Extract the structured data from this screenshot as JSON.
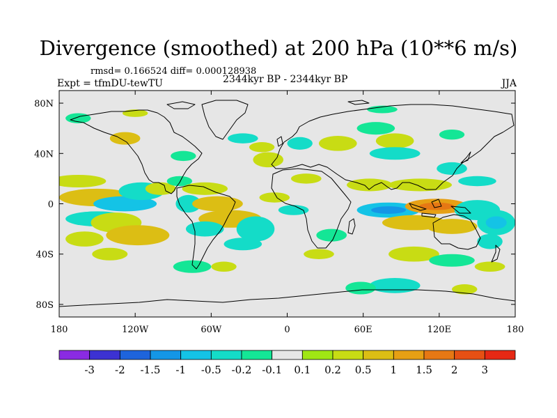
{
  "chart_data": {
    "type": "heatmap",
    "title": "Divergence (smoothed) at 200 hPa (10**6 m/s)",
    "stats": "rmsd= 0.166524 diff= 0.000128938",
    "experiment": "Expt = tfmDU-tewTU",
    "period": "2344kyr BP - 2344kyr BP",
    "season": "JJA",
    "xlim": [
      -180,
      180
    ],
    "ylim": [
      -90,
      90
    ],
    "x_ticks": [
      {
        "value": -180,
        "label": "180"
      },
      {
        "value": -120,
        "label": "120W"
      },
      {
        "value": -60,
        "label": "60W"
      },
      {
        "value": 0,
        "label": "0"
      },
      {
        "value": 60,
        "label": "60E"
      },
      {
        "value": 120,
        "label": "120E"
      },
      {
        "value": 180,
        "label": "180"
      }
    ],
    "y_ticks": [
      {
        "value": 80,
        "label": "80N"
      },
      {
        "value": 40,
        "label": "40N"
      },
      {
        "value": 0,
        "label": "0"
      },
      {
        "value": -40,
        "label": "40S"
      },
      {
        "value": -80,
        "label": "80S"
      }
    ],
    "colorbar": {
      "colors": [
        "#8a2be2",
        "#3c32d2",
        "#1e64dc",
        "#1496e6",
        "#14c3e6",
        "#14dcc8",
        "#14e696",
        "#e6e6e6",
        "#a0e614",
        "#c8dc14",
        "#dcbe14",
        "#e6a014",
        "#e67814",
        "#e65014",
        "#e62814"
      ],
      "labels": [
        "-3",
        "-2",
        "-1.5",
        "-1",
        "-0.5",
        "-0.2",
        "-0.1",
        "0.1",
        "0.2",
        "0.5",
        "1",
        "1.5",
        "2",
        "3"
      ]
    },
    "anomalies": [
      {
        "lon": -165,
        "lat": 18,
        "rx": 22,
        "ry": 5,
        "value": 0.3
      },
      {
        "lon": -150,
        "lat": 5,
        "rx": 30,
        "ry": 7,
        "value": 0.6
      },
      {
        "lon": -128,
        "lat": 0,
        "rx": 25,
        "ry": 6,
        "value": -0.6
      },
      {
        "lon": -115,
        "lat": 10,
        "rx": 18,
        "ry": 7,
        "value": -0.3
      },
      {
        "lon": -150,
        "lat": -12,
        "rx": 25,
        "ry": 6,
        "value": -0.4
      },
      {
        "lon": -135,
        "lat": -15,
        "rx": 20,
        "ry": 8,
        "value": 0.4
      },
      {
        "lon": -118,
        "lat": -25,
        "rx": 25,
        "ry": 8,
        "value": 0.5
      },
      {
        "lon": -160,
        "lat": -28,
        "rx": 15,
        "ry": 6,
        "value": 0.3
      },
      {
        "lon": -140,
        "lat": -40,
        "rx": 14,
        "ry": 5,
        "value": 0.4
      },
      {
        "lon": -128,
        "lat": 52,
        "rx": 12,
        "ry": 5,
        "value": 0.5
      },
      {
        "lon": -82,
        "lat": 38,
        "rx": 10,
        "ry": 4,
        "value": -0.2
      },
      {
        "lon": -100,
        "lat": 12,
        "rx": 12,
        "ry": 5,
        "value": 0.3
      },
      {
        "lon": -85,
        "lat": 18,
        "rx": 10,
        "ry": 4,
        "value": -0.2
      },
      {
        "lon": -65,
        "lat": 12,
        "rx": 18,
        "ry": 5,
        "value": 0.4
      },
      {
        "lon": -78,
        "lat": 0,
        "rx": 10,
        "ry": 7,
        "value": -0.3
      },
      {
        "lon": -55,
        "lat": 0,
        "rx": 20,
        "ry": 6,
        "value": 0.6
      },
      {
        "lon": -45,
        "lat": -12,
        "rx": 25,
        "ry": 7,
        "value": 0.5
      },
      {
        "lon": -65,
        "lat": -20,
        "rx": 15,
        "ry": 6,
        "value": -0.3
      },
      {
        "lon": -35,
        "lat": -32,
        "rx": 15,
        "ry": 5,
        "value": -0.4
      },
      {
        "lon": -25,
        "lat": -20,
        "rx": 15,
        "ry": 10,
        "value": -0.3
      },
      {
        "lon": -10,
        "lat": 5,
        "rx": 12,
        "ry": 4,
        "value": 0.3
      },
      {
        "lon": -75,
        "lat": -50,
        "rx": 15,
        "ry": 5,
        "value": -0.2
      },
      {
        "lon": -50,
        "lat": -50,
        "rx": 10,
        "ry": 4,
        "value": 0.3
      },
      {
        "lon": -35,
        "lat": 52,
        "rx": 12,
        "ry": 4,
        "value": -0.3
      },
      {
        "lon": -20,
        "lat": 45,
        "rx": 10,
        "ry": 4,
        "value": 0.3
      },
      {
        "lon": -15,
        "lat": 35,
        "rx": 12,
        "ry": 6,
        "value": 0.3
      },
      {
        "lon": 10,
        "lat": 48,
        "rx": 10,
        "ry": 5,
        "value": -0.3
      },
      {
        "lon": 40,
        "lat": 48,
        "rx": 15,
        "ry": 6,
        "value": 0.3
      },
      {
        "lon": 15,
        "lat": 20,
        "rx": 12,
        "ry": 4,
        "value": 0.4
      },
      {
        "lon": 5,
        "lat": -5,
        "rx": 12,
        "ry": 4,
        "value": -0.3
      },
      {
        "lon": 35,
        "lat": -25,
        "rx": 12,
        "ry": 5,
        "value": -0.2
      },
      {
        "lon": 25,
        "lat": -40,
        "rx": 12,
        "ry": 4,
        "value": 0.3
      },
      {
        "lon": 70,
        "lat": 60,
        "rx": 15,
        "ry": 5,
        "value": -0.2
      },
      {
        "lon": 85,
        "lat": 50,
        "rx": 15,
        "ry": 6,
        "value": 0.3
      },
      {
        "lon": 85,
        "lat": 40,
        "rx": 20,
        "ry": 5,
        "value": -0.3
      },
      {
        "lon": 65,
        "lat": 15,
        "rx": 18,
        "ry": 5,
        "value": 0.4
      },
      {
        "lon": 105,
        "lat": 15,
        "rx": 25,
        "ry": 5,
        "value": 0.4
      },
      {
        "lon": 130,
        "lat": 28,
        "rx": 12,
        "ry": 5,
        "value": -0.3
      },
      {
        "lon": 80,
        "lat": -5,
        "rx": 25,
        "ry": 6,
        "value": -0.8
      },
      {
        "lon": 118,
        "lat": -2,
        "rx": 25,
        "ry": 6,
        "value": 1.2
      },
      {
        "lon": 100,
        "lat": -15,
        "rx": 25,
        "ry": 6,
        "value": 0.6
      },
      {
        "lon": 130,
        "lat": -18,
        "rx": 20,
        "ry": 6,
        "value": 0.5
      },
      {
        "lon": 150,
        "lat": -5,
        "rx": 18,
        "ry": 8,
        "value": -0.4
      },
      {
        "lon": 165,
        "lat": -15,
        "rx": 15,
        "ry": 10,
        "value": -0.5
      },
      {
        "lon": 160,
        "lat": -30,
        "rx": 10,
        "ry": 6,
        "value": -0.3
      },
      {
        "lon": 150,
        "lat": 18,
        "rx": 15,
        "ry": 4,
        "value": -0.3
      },
      {
        "lon": 100,
        "lat": -40,
        "rx": 20,
        "ry": 6,
        "value": 0.3
      },
      {
        "lon": 130,
        "lat": -45,
        "rx": 18,
        "ry": 5,
        "value": -0.2
      },
      {
        "lon": 160,
        "lat": -50,
        "rx": 12,
        "ry": 4,
        "value": 0.3
      },
      {
        "lon": 85,
        "lat": -65,
        "rx": 20,
        "ry": 6,
        "value": -0.3
      },
      {
        "lon": 58,
        "lat": -67,
        "rx": 12,
        "ry": 5,
        "value": -0.2
      },
      {
        "lon": 140,
        "lat": -68,
        "rx": 10,
        "ry": 4,
        "value": 0.3
      },
      {
        "lon": -165,
        "lat": 68,
        "rx": 10,
        "ry": 4,
        "value": -0.2
      },
      {
        "lon": -120,
        "lat": 72,
        "rx": 10,
        "ry": 3,
        "value": 0.3
      },
      {
        "lon": 75,
        "lat": 75,
        "rx": 12,
        "ry": 3,
        "value": -0.2
      },
      {
        "lon": 130,
        "lat": 55,
        "rx": 10,
        "ry": 4,
        "value": -0.2
      }
    ]
  }
}
